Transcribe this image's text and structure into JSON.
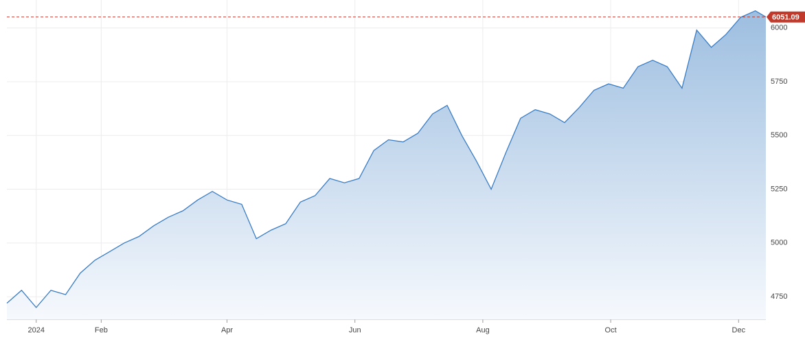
{
  "chart_data": {
    "type": "area",
    "x": [
      0,
      7,
      14,
      21,
      28,
      35,
      42,
      49,
      56,
      63,
      70,
      77,
      84,
      91,
      98,
      105,
      112,
      119,
      126,
      133,
      140,
      147,
      154,
      161,
      168,
      175,
      182,
      189,
      196,
      203,
      210,
      217,
      224,
      231,
      238,
      245,
      252,
      259,
      266,
      273,
      280,
      287,
      294,
      301,
      308,
      315,
      322,
      329,
      336,
      343,
      350,
      357,
      362
    ],
    "values": [
      4720,
      4780,
      4700,
      4780,
      4760,
      4860,
      4920,
      4960,
      5000,
      5030,
      5080,
      5120,
      5150,
      5200,
      5240,
      5200,
      5180,
      5020,
      5060,
      5090,
      5190,
      5220,
      5300,
      5280,
      5300,
      5430,
      5480,
      5470,
      5510,
      5600,
      5640,
      5500,
      5380,
      5250,
      5420,
      5580,
      5620,
      5600,
      5560,
      5630,
      5710,
      5740,
      5720,
      5820,
      5850,
      5820,
      5720,
      5990,
      5910,
      5970,
      6050,
      6080,
      6051.09
    ],
    "color": "#3a7cc3",
    "xlim": [
      0,
      362
    ],
    "xticks": [
      {
        "value": 14,
        "label": "2024"
      },
      {
        "value": 45,
        "label": "Feb"
      },
      {
        "value": 105,
        "label": "Apr"
      },
      {
        "value": 166,
        "label": "Jun"
      },
      {
        "value": 227,
        "label": "Aug"
      },
      {
        "value": 288,
        "label": "Oct"
      },
      {
        "value": 349,
        "label": "Dec"
      }
    ],
    "ylim": [
      4645,
      6130
    ],
    "yticks": [
      4750,
      5000,
      5250,
      5500,
      5750,
      6000
    ],
    "grid": true,
    "last_value_color": "#c0392b"
  }
}
